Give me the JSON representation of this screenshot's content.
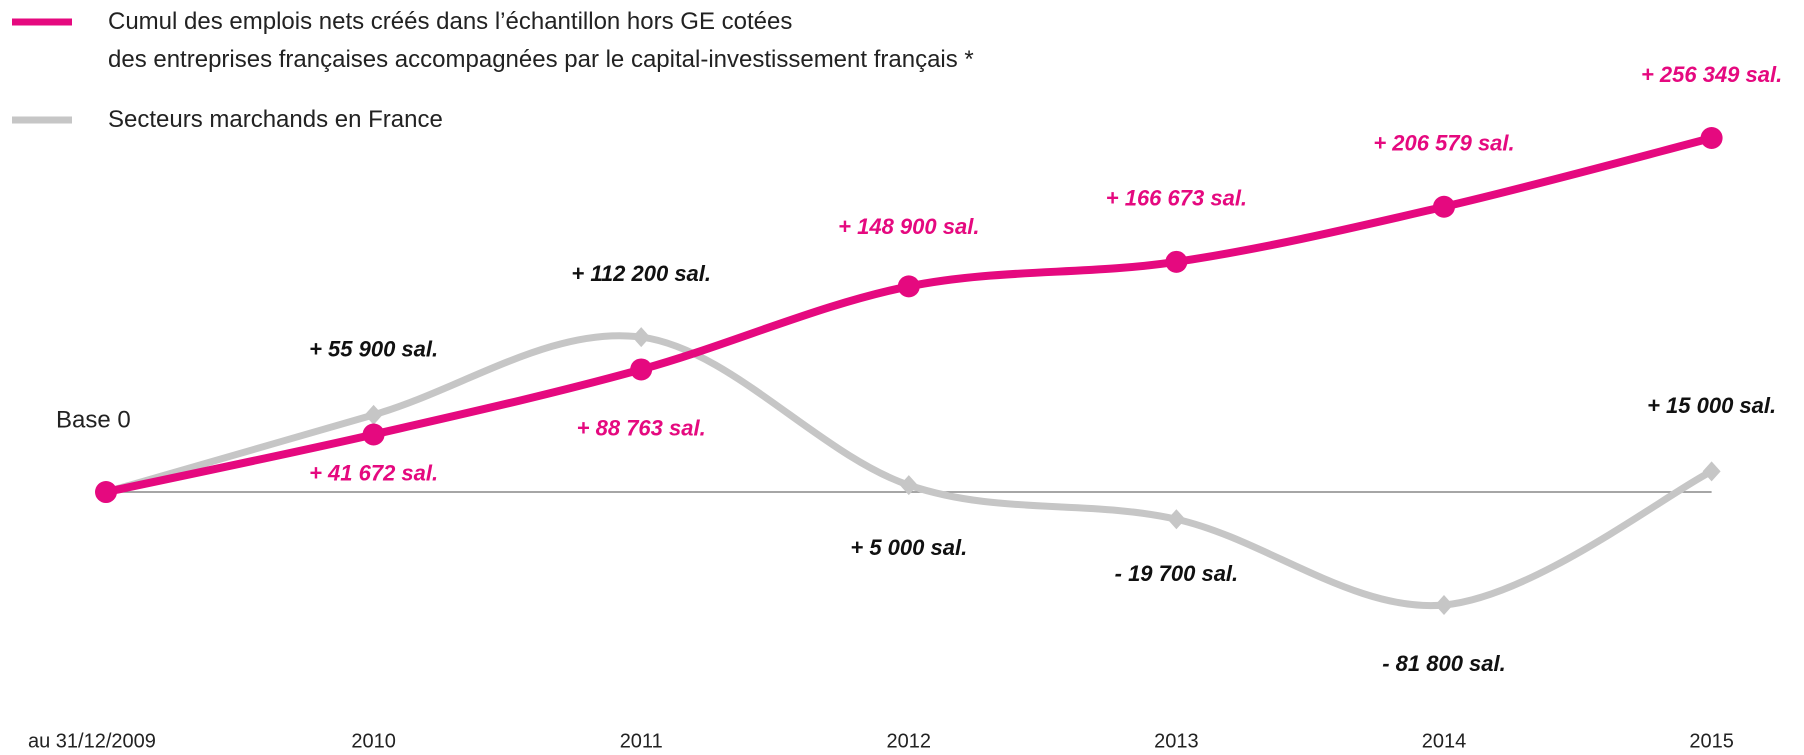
{
  "chart_data": {
    "type": "line",
    "annotation": "Base 0",
    "categories": [
      "au 31/12/2009",
      "2010",
      "2011",
      "2012",
      "2013",
      "2014",
      "2015"
    ],
    "series": [
      {
        "name": "Cumul des emplois nets créés dans l’échantillon hors GE cotées\ndes entreprises françaises accompagnées par le capital-investissement français *",
        "color": "#e5097f",
        "values": [
          0,
          41672,
          88763,
          148900,
          166673,
          206579,
          256349
        ],
        "value_labels": [
          null,
          "+ 41 672 sal.",
          "+ 88 763 sal.",
          "+ 148 900 sal.",
          "+ 166 673 sal.",
          "+ 206 579 sal.",
          "+ 256 349 sal."
        ]
      },
      {
        "name": "Secteurs marchands en France",
        "color": "#c6c6c6",
        "values": [
          0,
          55900,
          112200,
          5000,
          -19700,
          -81800,
          15000
        ],
        "value_labels": [
          null,
          "+ 55 900 sal.",
          "+ 112 200 sal.",
          "+ 5 000 sal.",
          "- 19 700 sal.",
          "- 81 800 sal.",
          "+ 15 000 sal."
        ]
      }
    ]
  }
}
